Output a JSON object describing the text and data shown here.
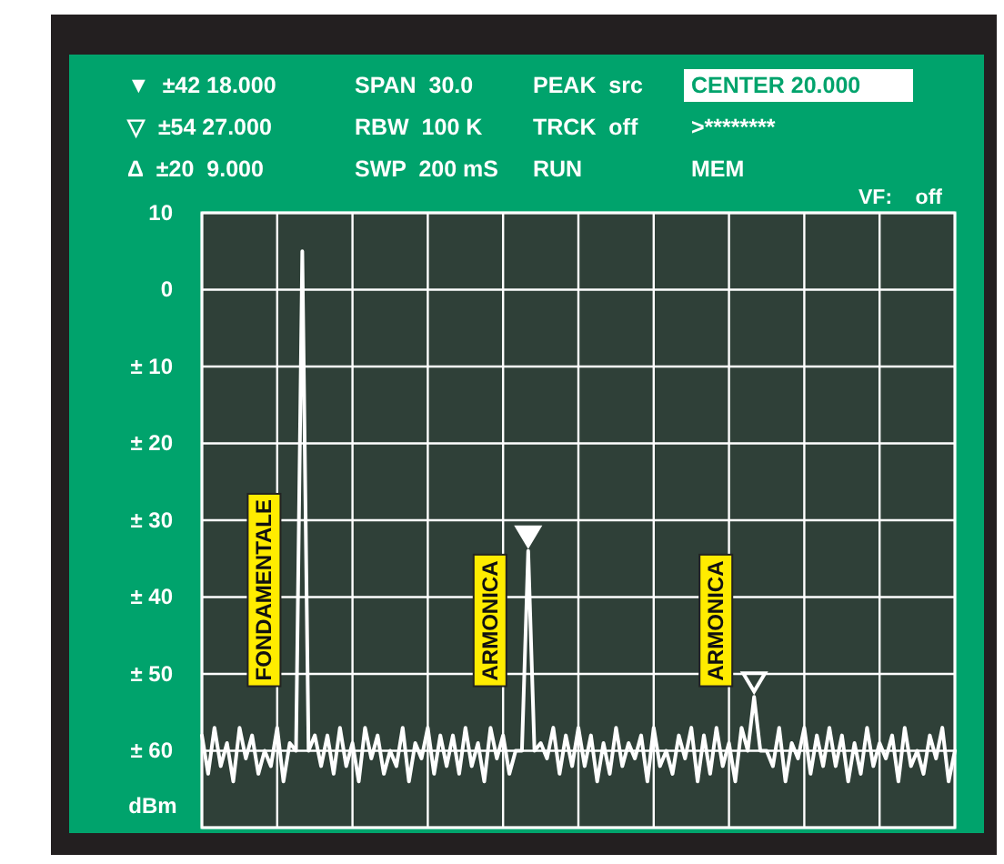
{
  "chart_data": {
    "type": "line",
    "ylabel": "dBm",
    "ylim": [
      -70,
      10
    ],
    "yticks": [
      10,
      0,
      {
        "value": -10,
        "label": "± 10"
      },
      {
        "value": -20,
        "label": "± 20"
      },
      {
        "value": -30,
        "label": "± 30"
      },
      {
        "value": -40,
        "label": "± 40"
      },
      {
        "value": -50,
        "label": "± 50"
      },
      {
        "value": -60,
        "label": "± 60"
      },
      {
        "value": -70,
        "label": null
      }
    ],
    "tick_labels": "y",
    "grid": true,
    "marker": "none",
    "line_style": "solid",
    "categories": [
      null,
      null,
      null,
      null,
      null,
      null,
      null,
      null,
      null,
      null,
      null,
      null,
      null,
      null,
      null,
      null,
      null,
      null,
      null,
      null,
      null,
      null,
      null,
      null,
      null,
      null,
      null,
      null,
      null,
      null,
      null,
      null,
      null,
      null,
      null,
      null,
      null,
      null,
      null,
      null,
      null,
      null,
      null,
      null,
      null,
      null,
      null,
      null,
      null,
      null,
      null,
      null,
      null,
      null,
      null,
      null,
      null,
      null,
      null,
      null,
      null,
      null,
      null,
      null,
      null,
      null,
      null,
      null,
      null,
      null,
      null,
      null,
      null,
      null,
      null,
      null,
      null,
      null,
      null,
      null,
      null,
      null,
      null,
      null,
      null,
      null,
      null,
      null,
      null,
      null,
      null,
      null,
      null,
      null,
      null,
      null,
      null,
      null,
      null,
      null,
      null,
      null,
      null,
      null,
      null,
      null,
      null,
      null,
      null,
      null,
      null,
      null,
      null,
      null,
      null,
      null,
      null,
      null,
      null,
      null,
      null
    ],
    "series": [
      {
        "color": "#ffffff",
        "values": [
          -58,
          -63,
          -57,
          -62,
          -59,
          -64,
          -57,
          -61,
          -58,
          -63,
          -60,
          -62,
          -57,
          -64,
          -59,
          -60,
          5,
          -60,
          -58,
          -62,
          -58,
          -63,
          -57,
          -62,
          -59,
          -64,
          -57,
          -61,
          -58,
          -63,
          -60,
          -62,
          -57,
          -64,
          -59,
          -61,
          -57,
          -63,
          -58,
          -62,
          -58,
          -63,
          -57,
          -62,
          -59,
          -64,
          -57,
          -61,
          -58,
          -63,
          -60,
          -60,
          -34,
          -60,
          -59,
          -61,
          -57,
          -63,
          -58,
          -62,
          -57,
          -62,
          -58,
          -64,
          -59,
          -63,
          -57,
          -62,
          -59,
          -61,
          -58,
          -64,
          -57,
          -62,
          -60,
          -63,
          -58,
          -61,
          -57,
          -64,
          -58,
          -63,
          -57,
          -62,
          -59,
          -64,
          -57,
          -60,
          -53,
          -60,
          -60,
          -62,
          -57,
          -64,
          -59,
          -61,
          -57,
          -63,
          -58,
          -62,
          -57,
          -62,
          -58,
          -64,
          -59,
          -63,
          -57,
          -62,
          -59,
          -61,
          -58,
          -64,
          -57,
          -62,
          -60,
          -63,
          -58,
          -61,
          -57,
          -64,
          -60
        ]
      }
    ],
    "annotations": [
      "▼  ±42 18.000",
      "SPAN  30.0",
      "PEAK  src",
      "CENTER 20.000",
      "▽  ±54 27.000",
      "RBW  100 K",
      "TRCK  off",
      ">********",
      "Δ  ±20  9.000",
      "SWP  200 mS",
      "RUN",
      "MEM",
      "VF:    off",
      "FONDAMENTALE",
      "ARMONICA",
      "ARMONICA"
    ]
  }
}
